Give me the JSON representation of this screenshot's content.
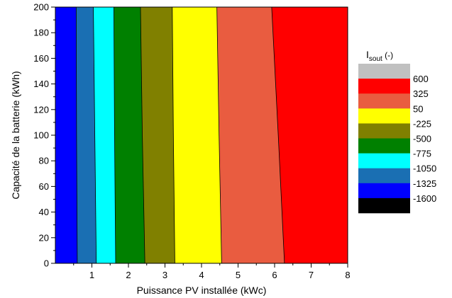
{
  "chart_data": {
    "type": "contour",
    "xlabel": "Puissance PV installée (kWc)",
    "ylabel": "Capacité de la batterie (kWh)",
    "xlim": [
      0,
      8
    ],
    "ylim": [
      0,
      200
    ],
    "x_ticks": [
      1,
      2,
      3,
      4,
      5,
      6,
      7,
      8
    ],
    "x_tick_labels": [
      "1",
      "2",
      "3",
      "4",
      "5",
      "6",
      "7",
      "8"
    ],
    "y_ticks": [
      0,
      20,
      40,
      60,
      80,
      100,
      120,
      140,
      160,
      180,
      200
    ],
    "y_tick_labels": [
      "0",
      "20",
      "40",
      "60",
      "80",
      "100",
      "120",
      "140",
      "160",
      "180",
      "200"
    ],
    "legend": {
      "title_main": "I",
      "title_sub": "sout",
      "title_unit": " (-)",
      "position": "right",
      "levels": [
        {
          "label": "",
          "color": "#c0c0c0"
        },
        {
          "label": "600",
          "color": "#ff0000"
        },
        {
          "label": "325",
          "color": "#e95c40"
        },
        {
          "label": "50",
          "color": "#ffff00"
        },
        {
          "label": "-225",
          "color": "#808000"
        },
        {
          "label": "-500",
          "color": "#008000"
        },
        {
          "label": "-775",
          "color": "#00ffff"
        },
        {
          "label": "-1050",
          "color": "#1a6fb3"
        },
        {
          "label": "-1325",
          "color": "#0000ff"
        },
        {
          "label": "-1600",
          "color": "#000000"
        }
      ]
    },
    "contour_bands": [
      {
        "color": "#0000ff",
        "boundary": [
          {
            "y": 0,
            "x": 0.6
          },
          {
            "y": 100,
            "x": 0.58
          },
          {
            "y": 200,
            "x": 0.57
          }
        ]
      },
      {
        "color": "#1a6fb3",
        "boundary": [
          {
            "y": 0,
            "x": 1.12
          },
          {
            "y": 100,
            "x": 1.08
          },
          {
            "y": 200,
            "x": 1.04
          }
        ]
      },
      {
        "color": "#00ffff",
        "boundary": [
          {
            "y": 0,
            "x": 1.65
          },
          {
            "y": 100,
            "x": 1.62
          },
          {
            "y": 200,
            "x": 1.6
          }
        ]
      },
      {
        "color": "#008000",
        "boundary": [
          {
            "y": 0,
            "x": 2.45
          },
          {
            "y": 100,
            "x": 2.38
          },
          {
            "y": 200,
            "x": 2.33
          }
        ]
      },
      {
        "color": "#808000",
        "boundary": [
          {
            "y": 0,
            "x": 3.27
          },
          {
            "y": 100,
            "x": 3.23
          },
          {
            "y": 200,
            "x": 3.2
          }
        ]
      },
      {
        "color": "#ffff00",
        "boundary": [
          {
            "y": 0,
            "x": 4.55
          },
          {
            "y": 100,
            "x": 4.48
          },
          {
            "y": 200,
            "x": 4.42
          }
        ]
      },
      {
        "color": "#e95c40",
        "boundary": [
          {
            "y": 0,
            "x": 6.27
          },
          {
            "y": 100,
            "x": 6.1
          },
          {
            "y": 200,
            "x": 5.92
          }
        ]
      },
      {
        "color": "#ff0000",
        "boundary": null
      }
    ]
  }
}
